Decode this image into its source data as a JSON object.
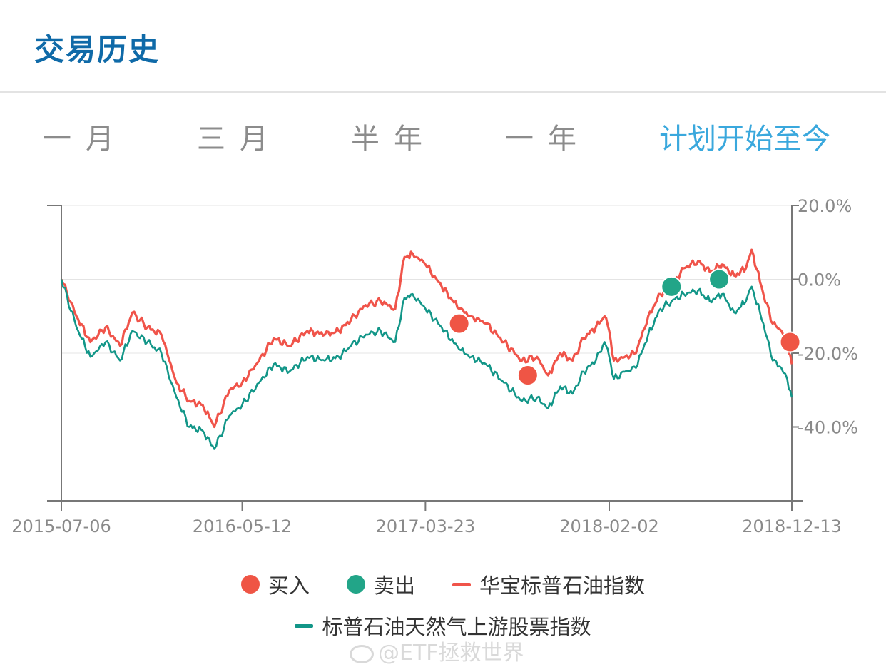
{
  "header": {
    "title": "交易历史"
  },
  "tabs": [
    {
      "label": "一月",
      "active": false
    },
    {
      "label": "三月",
      "active": false
    },
    {
      "label": "半年",
      "active": false
    },
    {
      "label": "一年",
      "active": false
    },
    {
      "label": "计划开始至今",
      "active": true
    }
  ],
  "colors": {
    "buy": "#ef5545",
    "sell": "#22a588",
    "fund_line": "#f0544a",
    "index_line": "#129688",
    "active_tab": "#3aa8dd",
    "title": "#0f6aa8"
  },
  "legend": {
    "buy": "买入",
    "sell": "卖出",
    "fund": "华宝标普石油指数",
    "index": "标普石油天然气上游股票指数"
  },
  "watermark": "@ETF拯救世界",
  "chart_data": {
    "type": "line",
    "x_ticks": [
      "2015-07-06",
      "2016-05-12",
      "2017-03-23",
      "2018-02-02",
      "2018-12-13"
    ],
    "y_ticks": [
      "20.0%",
      "0.0%",
      "-20.0%",
      "-40.0%"
    ],
    "y_tick_values": [
      20,
      0,
      -20,
      -40
    ],
    "ylim": [
      -60,
      20
    ],
    "xlim": [
      "2015-07-06",
      "2018-12-13"
    ],
    "grid": true,
    "y_axis_position": "right",
    "legend_position": "bottom",
    "series": [
      {
        "name": "华宝标普石油指数",
        "color": "#f0544a",
        "points": [
          [
            "2015-07-06",
            0
          ],
          [
            "2015-08-01",
            -10
          ],
          [
            "2015-08-25",
            -17
          ],
          [
            "2015-09-20",
            -13
          ],
          [
            "2015-10-15",
            -18
          ],
          [
            "2015-11-05",
            -9
          ],
          [
            "2015-12-01",
            -13
          ],
          [
            "2015-12-25",
            -15
          ],
          [
            "2016-01-20",
            -28
          ],
          [
            "2016-02-11",
            -33
          ],
          [
            "2016-03-05",
            -34
          ],
          [
            "2016-03-25",
            -40
          ],
          [
            "2016-04-20",
            -30
          ],
          [
            "2016-05-12",
            -28
          ],
          [
            "2016-06-10",
            -22
          ],
          [
            "2016-07-05",
            -16
          ],
          [
            "2016-08-01",
            -18
          ],
          [
            "2016-09-01",
            -14
          ],
          [
            "2016-10-01",
            -15
          ],
          [
            "2016-10-25",
            -14
          ],
          [
            "2016-11-15",
            -11
          ],
          [
            "2016-12-10",
            -7
          ],
          [
            "2017-01-05",
            -6
          ],
          [
            "2017-01-30",
            -8
          ],
          [
            "2017-02-15",
            6
          ],
          [
            "2017-03-01",
            7
          ],
          [
            "2017-03-23",
            4
          ],
          [
            "2017-04-20",
            -2
          ],
          [
            "2017-05-20",
            -8
          ],
          [
            "2017-06-10",
            -10
          ],
          [
            "2017-07-05",
            -12
          ],
          [
            "2017-08-05",
            -17
          ],
          [
            "2017-09-05",
            -22
          ],
          [
            "2017-10-01",
            -21
          ],
          [
            "2017-10-20",
            -26
          ],
          [
            "2017-11-10",
            -20
          ],
          [
            "2017-12-01",
            -22
          ],
          [
            "2017-12-20",
            -16
          ],
          [
            "2018-01-10",
            -13
          ],
          [
            "2018-01-25",
            -10
          ],
          [
            "2018-02-02",
            -14
          ],
          [
            "2018-02-10",
            -22
          ],
          [
            "2018-03-01",
            -21
          ],
          [
            "2018-03-20",
            -20
          ],
          [
            "2018-04-10",
            -10
          ],
          [
            "2018-05-01",
            -4
          ],
          [
            "2018-05-20",
            -2
          ],
          [
            "2018-06-10",
            3
          ],
          [
            "2018-07-05",
            5
          ],
          [
            "2018-07-25",
            2
          ],
          [
            "2018-08-15",
            4
          ],
          [
            "2018-09-05",
            1
          ],
          [
            "2018-09-25",
            3
          ],
          [
            "2018-10-05",
            8
          ],
          [
            "2018-10-25",
            -4
          ],
          [
            "2018-11-10",
            -12
          ],
          [
            "2018-11-25",
            -14
          ],
          [
            "2018-12-05",
            -17
          ],
          [
            "2018-12-13",
            -23
          ]
        ]
      },
      {
        "name": "标普石油天然气上游股票指数",
        "color": "#129688",
        "points": [
          [
            "2015-07-06",
            0
          ],
          [
            "2015-08-01",
            -13
          ],
          [
            "2015-08-25",
            -21
          ],
          [
            "2015-09-20",
            -17
          ],
          [
            "2015-10-15",
            -22
          ],
          [
            "2015-11-05",
            -14
          ],
          [
            "2015-12-01",
            -17
          ],
          [
            "2015-12-25",
            -20
          ],
          [
            "2016-01-20",
            -32
          ],
          [
            "2016-02-11",
            -40
          ],
          [
            "2016-03-05",
            -41
          ],
          [
            "2016-03-25",
            -46
          ],
          [
            "2016-04-20",
            -37
          ],
          [
            "2016-05-12",
            -34
          ],
          [
            "2016-06-10",
            -28
          ],
          [
            "2016-07-05",
            -23
          ],
          [
            "2016-08-01",
            -25
          ],
          [
            "2016-09-01",
            -21
          ],
          [
            "2016-10-01",
            -22
          ],
          [
            "2016-10-25",
            -21
          ],
          [
            "2016-11-15",
            -18
          ],
          [
            "2016-12-10",
            -15
          ],
          [
            "2017-01-05",
            -14
          ],
          [
            "2017-01-30",
            -17
          ],
          [
            "2017-02-15",
            -5
          ],
          [
            "2017-03-01",
            -4
          ],
          [
            "2017-03-23",
            -8
          ],
          [
            "2017-04-20",
            -13
          ],
          [
            "2017-05-20",
            -19
          ],
          [
            "2017-06-10",
            -21
          ],
          [
            "2017-07-05",
            -23
          ],
          [
            "2017-08-05",
            -28
          ],
          [
            "2017-09-05",
            -33
          ],
          [
            "2017-10-01",
            -32
          ],
          [
            "2017-10-20",
            -35
          ],
          [
            "2017-11-10",
            -29
          ],
          [
            "2017-12-01",
            -31
          ],
          [
            "2017-12-20",
            -25
          ],
          [
            "2018-01-10",
            -22
          ],
          [
            "2018-01-25",
            -17
          ],
          [
            "2018-02-02",
            -21
          ],
          [
            "2018-02-10",
            -27
          ],
          [
            "2018-03-01",
            -25
          ],
          [
            "2018-03-20",
            -24
          ],
          [
            "2018-04-10",
            -15
          ],
          [
            "2018-05-01",
            -8
          ],
          [
            "2018-05-20",
            -6
          ],
          [
            "2018-06-10",
            -4
          ],
          [
            "2018-07-05",
            -3
          ],
          [
            "2018-07-25",
            -6
          ],
          [
            "2018-08-15",
            -4
          ],
          [
            "2018-09-05",
            -9
          ],
          [
            "2018-09-25",
            -6
          ],
          [
            "2018-10-05",
            -2
          ],
          [
            "2018-10-25",
            -12
          ],
          [
            "2018-11-10",
            -22
          ],
          [
            "2018-11-25",
            -24
          ],
          [
            "2018-12-05",
            -27
          ],
          [
            "2018-12-13",
            -32
          ]
        ]
      }
    ],
    "markers": [
      {
        "type": "买入",
        "date": "2017-05-20",
        "value": -12
      },
      {
        "type": "买入",
        "date": "2017-09-15",
        "value": -26
      },
      {
        "type": "卖出",
        "date": "2018-05-20",
        "value": -2
      },
      {
        "type": "卖出",
        "date": "2018-08-10",
        "value": 0
      },
      {
        "type": "买入",
        "date": "2018-12-10",
        "value": -17
      }
    ]
  }
}
